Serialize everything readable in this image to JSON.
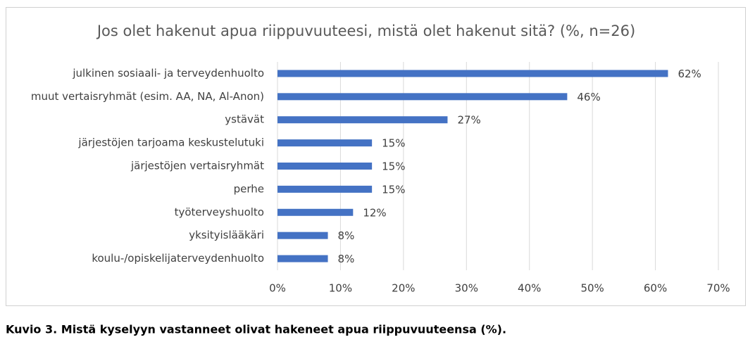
{
  "chart_data": {
    "type": "hbar",
    "title": "Jos olet hakenut apua riippuvuuteesi, mistä olet hakenut sitä? (%, n=26)",
    "categories": [
      "julkinen sosiaali- ja terveydenhuolto",
      "muut vertaisryhmät (esim. AA, NA, Al-Anon)",
      "ystävät",
      "järjestöjen tarjoama keskustelutuki",
      "järjestöjen vertaisryhmät",
      "perhe",
      "työterveyshuolto",
      "yksityislääkäri",
      "koulu-/opiskelijaterveydenhuolto"
    ],
    "values": [
      62,
      46,
      27,
      15,
      15,
      15,
      12,
      8,
      8
    ],
    "value_labels": [
      "62%",
      "46%",
      "27%",
      "15%",
      "15%",
      "15%",
      "12%",
      "8%",
      "8%"
    ],
    "color": "#4472c4",
    "xlim": [
      0,
      70
    ],
    "xticks": [
      {
        "value": 0,
        "label": "0%"
      },
      {
        "value": 10,
        "label": "10%"
      },
      {
        "value": 20,
        "label": "20%"
      },
      {
        "value": 30,
        "label": "30%"
      },
      {
        "value": 40,
        "label": "40%"
      },
      {
        "value": 50,
        "label": "50%"
      },
      {
        "value": 60,
        "label": "60%"
      },
      {
        "value": 70,
        "label": "70%"
      }
    ],
    "grid": true,
    "caption": "Kuvio 3. Mistä kyselyyn vastanneet olivat hakeneet apua riippuvuuteensa (%)."
  }
}
